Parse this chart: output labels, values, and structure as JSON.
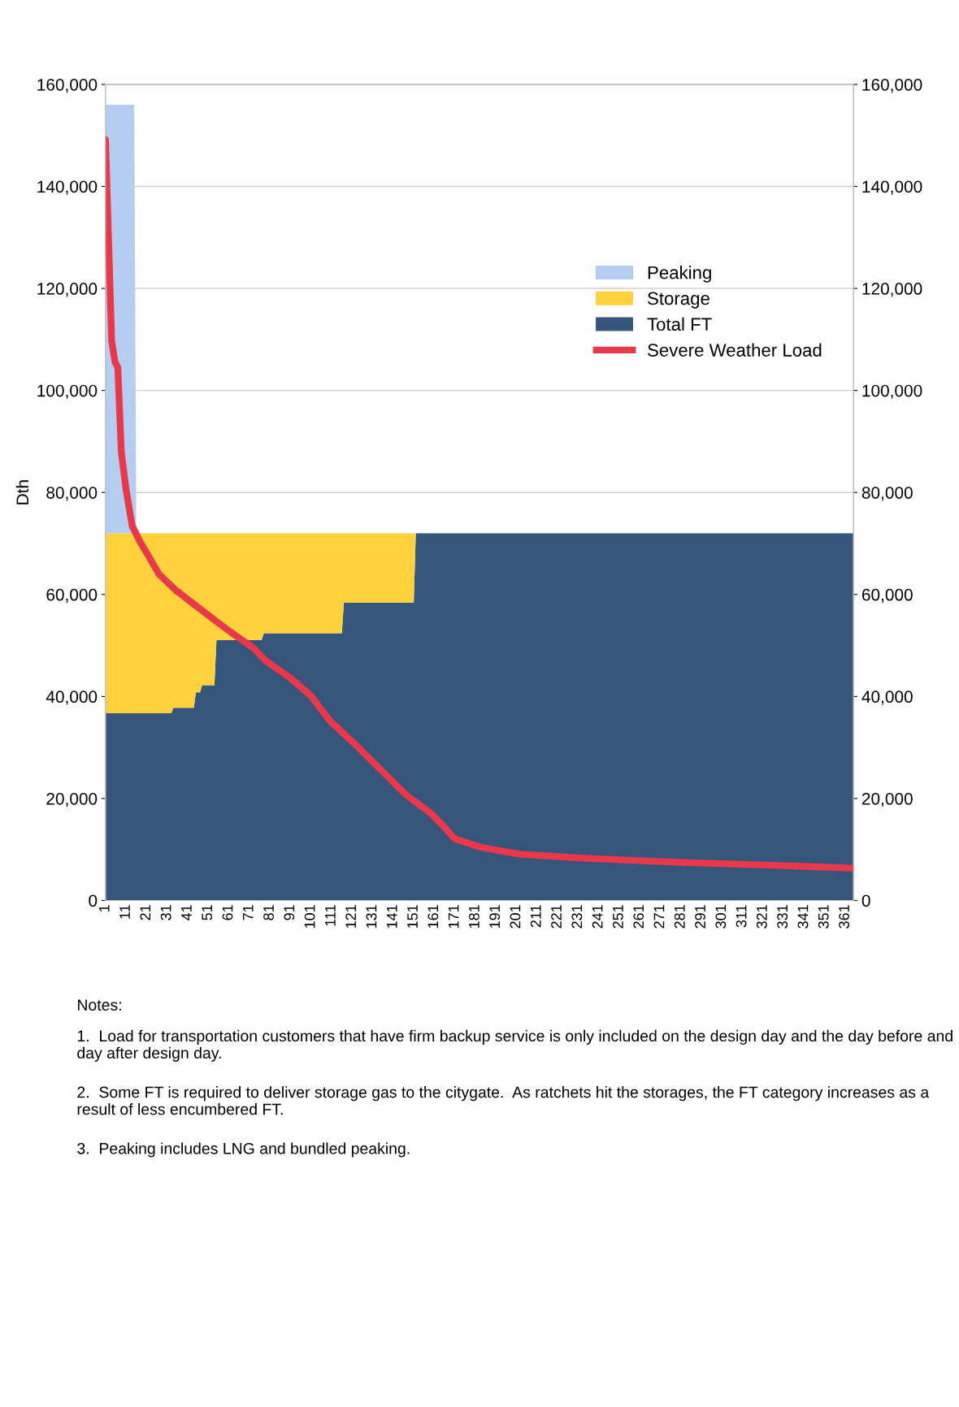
{
  "chart_data": {
    "type": "area",
    "stacked": true,
    "ylabel": "Dth",
    "x": [
      1,
      15,
      16,
      33,
      34,
      44,
      45,
      47,
      48,
      54,
      55,
      77,
      78,
      116,
      117,
      151,
      152,
      365
    ],
    "series": [
      {
        "name": "Total FT",
        "color": "#35557a",
        "values": [
          36700,
          36700,
          36700,
          36700,
          37800,
          37800,
          40800,
          40800,
          42200,
          42200,
          51100,
          51100,
          52400,
          52400,
          58400,
          58400,
          72000,
          72000
        ]
      },
      {
        "name": "Storage",
        "color": "#ffd23c",
        "values": [
          35300,
          35300,
          35300,
          35300,
          34200,
          34200,
          31200,
          31200,
          29800,
          29800,
          20900,
          20900,
          19600,
          19600,
          13600,
          13600,
          0,
          0
        ]
      },
      {
        "name": "Peaking",
        "color": "#b4cdf0",
        "values": [
          84000,
          84000,
          0,
          0,
          0,
          0,
          0,
          0,
          0,
          0,
          0,
          0,
          0,
          0,
          0,
          0,
          0,
          0
        ]
      },
      {
        "name": "Severe Weather Load",
        "type": "line",
        "color": "#e8384a",
        "x": [
          1,
          4,
          5.6,
          7,
          8.7,
          11,
          14,
          18,
          21,
          27,
          35,
          45,
          55,
          62,
          73,
          79,
          91,
          101,
          110,
          122,
          135,
          147,
          159,
          164,
          171,
          184,
          202,
          233,
          279,
          325,
          361,
          365
        ],
        "values": [
          149200,
          109700,
          105600,
          104500,
          87900,
          80600,
          73400,
          70200,
          68200,
          64000,
          60900,
          57800,
          54700,
          52600,
          49500,
          47000,
          43600,
          40100,
          35300,
          30800,
          25600,
          20800,
          17200,
          15200,
          12100,
          10400,
          9100,
          8300,
          7500,
          6900,
          6400,
          6300
        ]
      }
    ],
    "xlim": [
      1,
      365
    ],
    "xticks": [
      1,
      11,
      21,
      31,
      41,
      51,
      61,
      71,
      81,
      91,
      101,
      111,
      121,
      131,
      141,
      151,
      161,
      171,
      181,
      191,
      201,
      211,
      221,
      231,
      241,
      251,
      261,
      271,
      281,
      291,
      301,
      311,
      321,
      331,
      341,
      351,
      361
    ],
    "ylim": [
      0,
      160000
    ],
    "yticks": [
      {
        "value": 0,
        "label": "0"
      },
      {
        "value": 20000,
        "label": "20,000"
      },
      {
        "value": 40000,
        "label": "40,000"
      },
      {
        "value": 60000,
        "label": "60,000"
      },
      {
        "value": 80000,
        "label": "80,000"
      },
      {
        "value": 100000,
        "label": "100,000"
      },
      {
        "value": 120000,
        "label": "120,000"
      },
      {
        "value": 140000,
        "label": "140,000"
      },
      {
        "value": 160000,
        "label": "160,000"
      }
    ],
    "y2lim": [
      0,
      160000
    ],
    "y2ticks": [
      {
        "value": 0,
        "label": "0"
      },
      {
        "value": 20000,
        "label": "20,000"
      },
      {
        "value": 40000,
        "label": "40,000"
      },
      {
        "value": 60000,
        "label": "60,000"
      },
      {
        "value": 80000,
        "label": "80,000"
      },
      {
        "value": 100000,
        "label": "100,000"
      },
      {
        "value": 120000,
        "label": "120,000"
      },
      {
        "value": 140000,
        "label": "140,000"
      },
      {
        "value": 160000,
        "label": "160,000"
      }
    ],
    "grid": "y",
    "legend": "right",
    "line_style": "solid",
    "annotations": [
      "Notes:",
      "1.  Load for transportation customers that have firm backup service is only included on the design day and the day before and day after design day.",
      "2.  Some FT is required to deliver storage gas to the citygate.  As ratchets hit the storages, the FT category increases as a result of less encumbered FT.",
      "3.  Peaking includes LNG and bundled peaking."
    ]
  }
}
